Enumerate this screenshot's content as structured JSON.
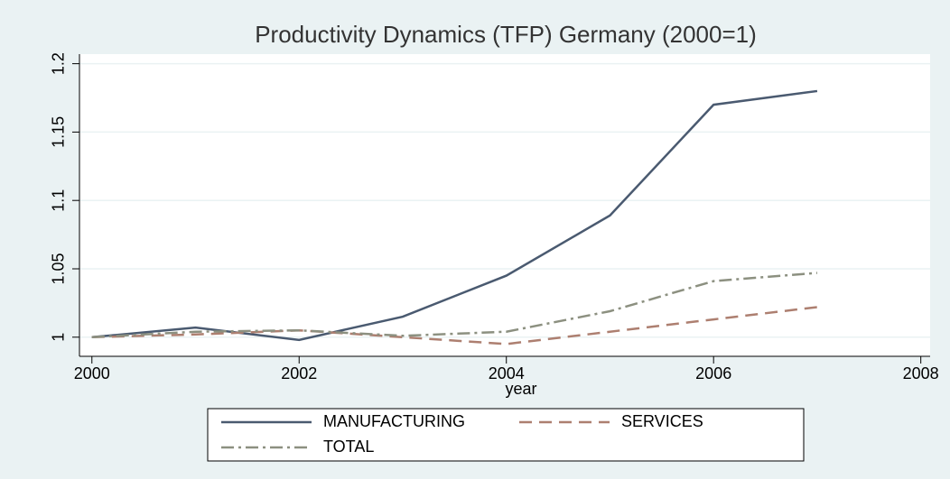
{
  "chart_data": {
    "type": "line",
    "title": "Productivity Dynamics (TFP) Germany (2000=1)",
    "x_label": "year",
    "x": [
      2000,
      2001,
      2002,
      2003,
      2004,
      2005,
      2006,
      2007
    ],
    "series": [
      {
        "name": "MANUFACTURING",
        "color": "#4a5a70",
        "dash": "solid",
        "values": [
          1,
          1.007,
          0.998,
          1.015,
          1.045,
          1.089,
          1.17,
          1.18
        ]
      },
      {
        "name": "SERVICES",
        "color": "#ad7f70",
        "dash": "dash",
        "values": [
          1,
          1.002,
          1.005,
          1.0,
          0.995,
          1.004,
          1.013,
          1.022
        ]
      },
      {
        "name": "TOTAL",
        "color": "#8c9080",
        "dash": "dashdot",
        "values": [
          1,
          1.004,
          1.005,
          1.001,
          1.004,
          1.019,
          1.041,
          1.047
        ]
      }
    ],
    "xlim": [
      1999.88,
      2008.09
    ],
    "xticks": [
      2000,
      2002,
      2004,
      2006,
      2008
    ],
    "ylim": [
      0.986,
      1.207
    ],
    "yticks": [
      1,
      1.05,
      1.1,
      1.15,
      1.2
    ],
    "grid": true
  }
}
